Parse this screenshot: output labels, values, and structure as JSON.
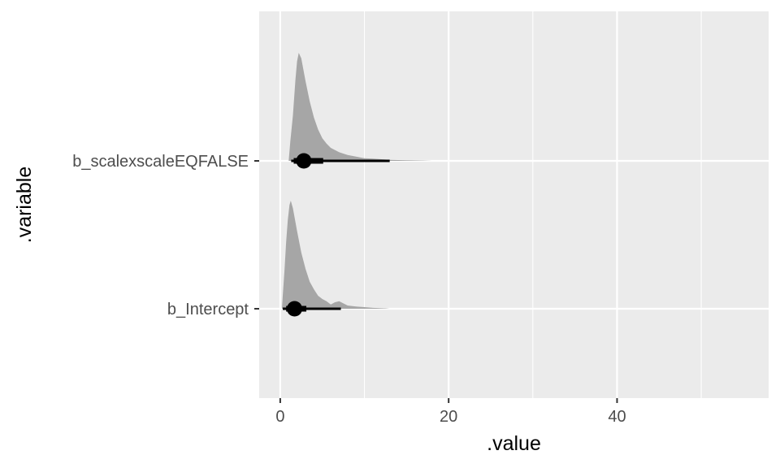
{
  "chart_data": {
    "type": "halfeye",
    "xlabel": ".value",
    "ylabel": ".variable",
    "xlim": [
      -2.5,
      58
    ],
    "x_ticks": [
      0,
      20,
      40
    ],
    "x_minor_ticks": [
      10,
      30,
      50
    ],
    "grid": true,
    "colors": {
      "panel": "#ebebeb",
      "grid": "#ffffff",
      "density": "#a6a6a6",
      "interval": "#000000"
    },
    "series": [
      {
        "name": "b_Intercept",
        "point": 1.7,
        "interval_66": [
          0.7,
          3.1
        ],
        "interval_95": [
          0.3,
          7.2
        ],
        "density": [
          [
            0.2,
            0.0
          ],
          [
            0.3,
            0.12
          ],
          [
            0.5,
            0.35
          ],
          [
            0.7,
            0.62
          ],
          [
            0.9,
            0.82
          ],
          [
            1.1,
            0.96
          ],
          [
            1.25,
            1.0
          ],
          [
            1.5,
            0.93
          ],
          [
            2.0,
            0.72
          ],
          [
            2.5,
            0.52
          ],
          [
            3.0,
            0.37
          ],
          [
            3.5,
            0.25
          ],
          [
            4.0,
            0.18
          ],
          [
            4.5,
            0.12
          ],
          [
            5.0,
            0.09
          ],
          [
            5.5,
            0.07
          ],
          [
            6.0,
            0.04
          ],
          [
            6.5,
            0.06
          ],
          [
            7.0,
            0.07
          ],
          [
            7.5,
            0.05
          ],
          [
            8.0,
            0.03
          ],
          [
            9.0,
            0.02
          ],
          [
            10.0,
            0.015
          ],
          [
            11.0,
            0.008
          ],
          [
            12.5,
            0.004
          ],
          [
            13.0,
            0.0
          ]
        ]
      },
      {
        "name": "b_scalexscaleEQFALSE",
        "point": 2.8,
        "interval_66": [
          1.6,
          5.1
        ],
        "interval_95": [
          1.3,
          13.0
        ],
        "density": [
          [
            1.0,
            0.0
          ],
          [
            1.2,
            0.18
          ],
          [
            1.5,
            0.42
          ],
          [
            1.8,
            0.75
          ],
          [
            2.0,
            0.92
          ],
          [
            2.2,
            1.0
          ],
          [
            2.5,
            0.95
          ],
          [
            3.0,
            0.74
          ],
          [
            3.5,
            0.55
          ],
          [
            4.0,
            0.4
          ],
          [
            4.5,
            0.29
          ],
          [
            5.0,
            0.21
          ],
          [
            5.5,
            0.16
          ],
          [
            6.0,
            0.12
          ],
          [
            7.0,
            0.08
          ],
          [
            8.0,
            0.055
          ],
          [
            9.0,
            0.04
          ],
          [
            10.0,
            0.025
          ],
          [
            11.0,
            0.02
          ],
          [
            12.0,
            0.015
          ],
          [
            13.0,
            0.01
          ],
          [
            15.0,
            0.006
          ],
          [
            17.0,
            0.003
          ],
          [
            18.0,
            0.0
          ]
        ]
      }
    ]
  }
}
